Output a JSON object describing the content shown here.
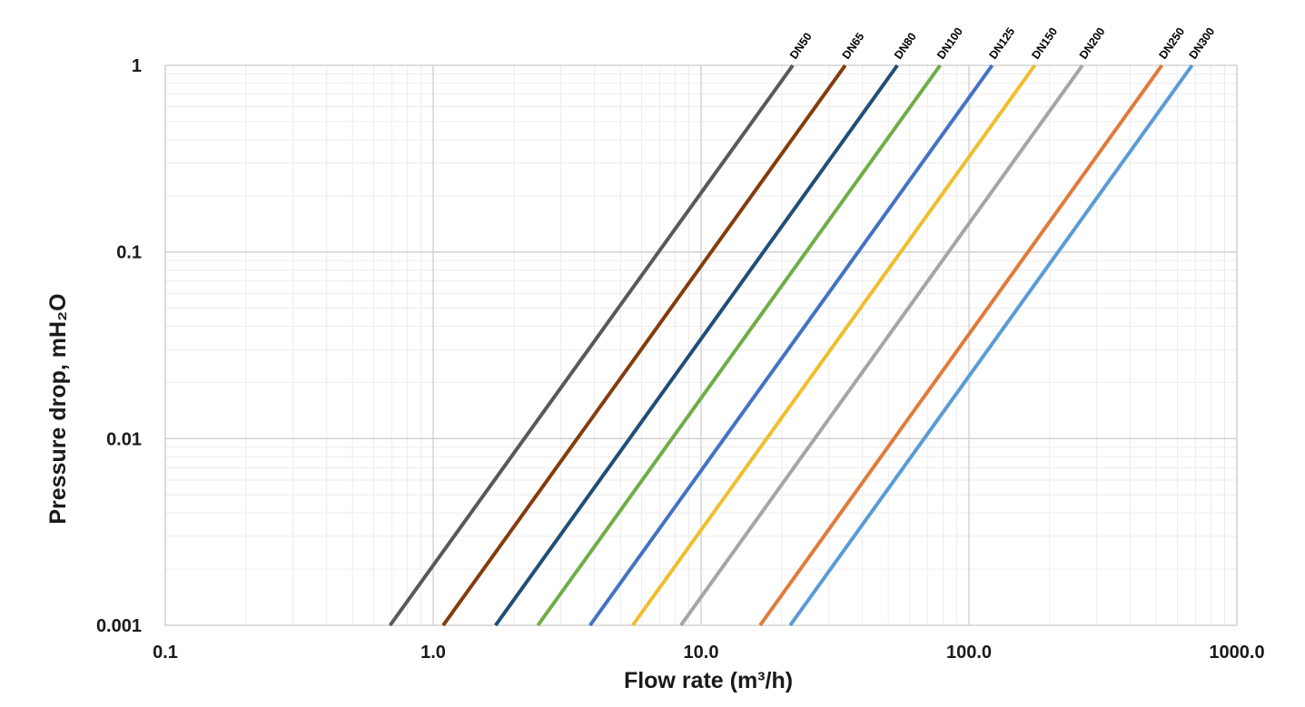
{
  "chart_data": {
    "type": "line",
    "x_scale": "log",
    "y_scale": "log",
    "xlim": [
      0.1,
      1000
    ],
    "ylim": [
      0.001,
      1
    ],
    "xlabel": "Flow rate (m³/h)",
    "ylabel": "Pressure drop, mH₂O",
    "x_ticks": [
      0.1,
      1,
      10,
      100,
      1000
    ],
    "x_tick_labels": [
      "0.1",
      "1.0",
      "10.0",
      "100.0",
      "1000.0"
    ],
    "y_ticks": [
      0.001,
      0.01,
      0.1,
      1
    ],
    "y_tick_labels": [
      "0.001",
      "0.01",
      "0.1",
      "1"
    ],
    "grid": true,
    "legend": "none",
    "series_labels_position": "top-end, rotated",
    "series": [
      {
        "name": "DN50",
        "color": "#595959",
        "x": [
          0.69,
          22
        ],
        "y": [
          0.001,
          1
        ]
      },
      {
        "name": "DN65",
        "color": "#843C0C",
        "x": [
          1.09,
          34.5
        ],
        "y": [
          0.001,
          1
        ]
      },
      {
        "name": "DN80",
        "color": "#1F4E79",
        "x": [
          1.71,
          54
        ],
        "y": [
          0.001,
          1
        ]
      },
      {
        "name": "DN100",
        "color": "#70AD47",
        "x": [
          2.46,
          78
        ],
        "y": [
          0.001,
          1
        ]
      },
      {
        "name": "DN125",
        "color": "#4472C4",
        "x": [
          3.85,
          122
        ],
        "y": [
          0.001,
          1
        ]
      },
      {
        "name": "DN150",
        "color": "#F0BE2C",
        "x": [
          5.55,
          176
        ],
        "y": [
          0.001,
          1
        ]
      },
      {
        "name": "DN200",
        "color": "#A5A5A5",
        "x": [
          8.4,
          265
        ],
        "y": [
          0.001,
          1
        ]
      },
      {
        "name": "DN250",
        "color": "#E07B39",
        "x": [
          16.6,
          525
        ],
        "y": [
          0.001,
          1
        ]
      },
      {
        "name": "DN300",
        "color": "#5B9BD5",
        "x": [
          21.5,
          680
        ],
        "y": [
          0.001,
          1
        ]
      }
    ]
  }
}
